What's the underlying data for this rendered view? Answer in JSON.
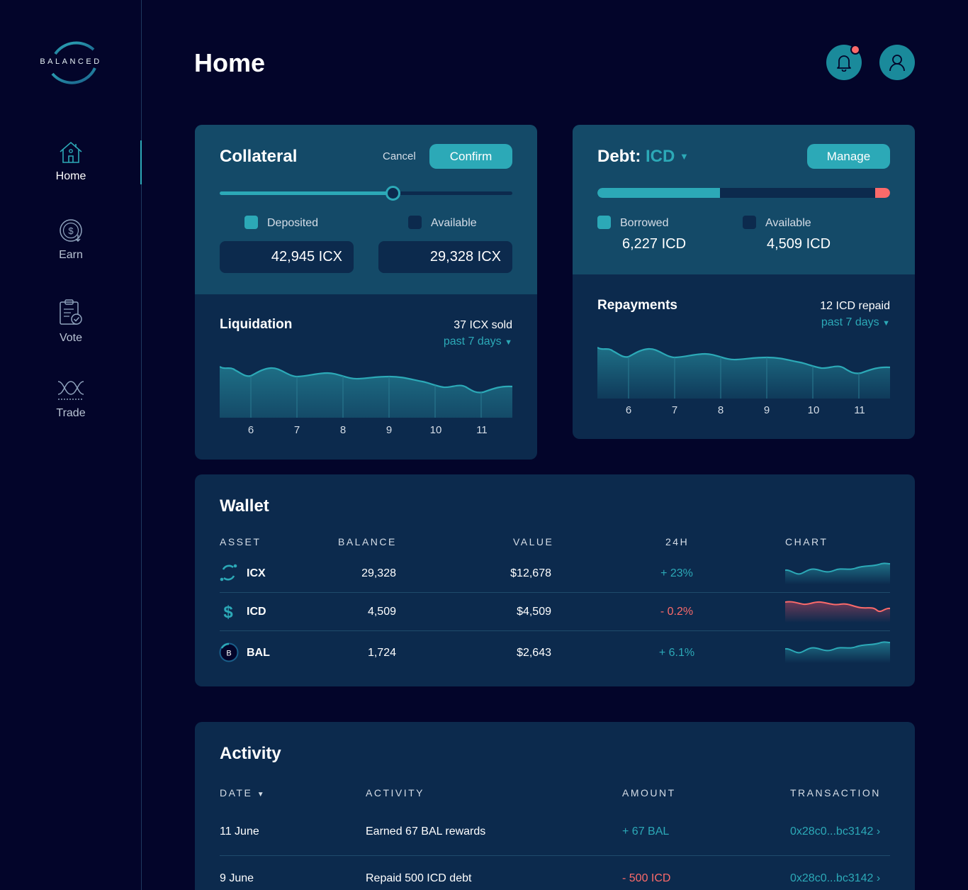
{
  "app": {
    "logo_text": "BALANCED"
  },
  "nav": [
    {
      "label": "Home",
      "icon": "home-icon",
      "active": true
    },
    {
      "label": "Earn",
      "icon": "earn-icon"
    },
    {
      "label": "Vote",
      "icon": "vote-icon"
    },
    {
      "label": "Trade",
      "icon": "trade-icon"
    }
  ],
  "header": {
    "title": "Home"
  },
  "colors": {
    "accent": "#2ca9b7",
    "negative": "#fb6a6a",
    "background": "#03052a",
    "card": "#0c2a4d",
    "card_highlight": "#144a68"
  },
  "collateral": {
    "title": "Collateral",
    "cancel_label": "Cancel",
    "confirm_label": "Confirm",
    "slider_fraction": 0.59,
    "deposited_label": "Deposited",
    "available_label": "Available",
    "deposited_value": "42,945 ICX",
    "available_value": "29,328 ICX"
  },
  "debt": {
    "title": "Debt:",
    "currency": "ICD",
    "manage_label": "Manage",
    "borrowed_fraction": 0.42,
    "limit_fraction": 0.05,
    "borrowed_label": "Borrowed",
    "available_label": "Available",
    "borrowed_value": "6,227 ICD",
    "available_value": "4,509 ICD"
  },
  "liquidation": {
    "title": "Liquidation",
    "summary": "37 ICX sold",
    "period": "past 7 days",
    "x_labels": [
      "6",
      "7",
      "8",
      "9",
      "10",
      "11"
    ]
  },
  "repayments": {
    "title": "Repayments",
    "summary": "12 ICD repaid",
    "period": "past 7 days",
    "x_labels": [
      "6",
      "7",
      "8",
      "9",
      "10",
      "11"
    ]
  },
  "wallet": {
    "title": "Wallet",
    "columns": [
      "ASSET",
      "BALANCE",
      "VALUE",
      "24H",
      "CHART"
    ],
    "rows": [
      {
        "asset": "ICX",
        "balance": "29,328",
        "value": "$12,678",
        "change": "+ 23%",
        "trend": "up"
      },
      {
        "asset": "ICD",
        "balance": "4,509",
        "value": "$4,509",
        "change": "- 0.2%",
        "trend": "down"
      },
      {
        "asset": "BAL",
        "balance": "1,724",
        "value": "$2,643",
        "change": "+ 6.1%",
        "trend": "up"
      }
    ]
  },
  "activity": {
    "title": "Activity",
    "columns": [
      "DATE",
      "ACTIVITY",
      "AMOUNT",
      "TRANSACTION"
    ],
    "rows": [
      {
        "date": "11 June",
        "activity": "Earned 67 BAL rewards",
        "amount": "+ 67 BAL",
        "sign": "pos",
        "tx": "0x28c0...bc3142"
      },
      {
        "date": "9 June",
        "activity": "Repaid 500 ICD debt",
        "amount": "- 500 ICD",
        "sign": "neg",
        "tx": "0x28c0...bc3142"
      }
    ]
  }
}
